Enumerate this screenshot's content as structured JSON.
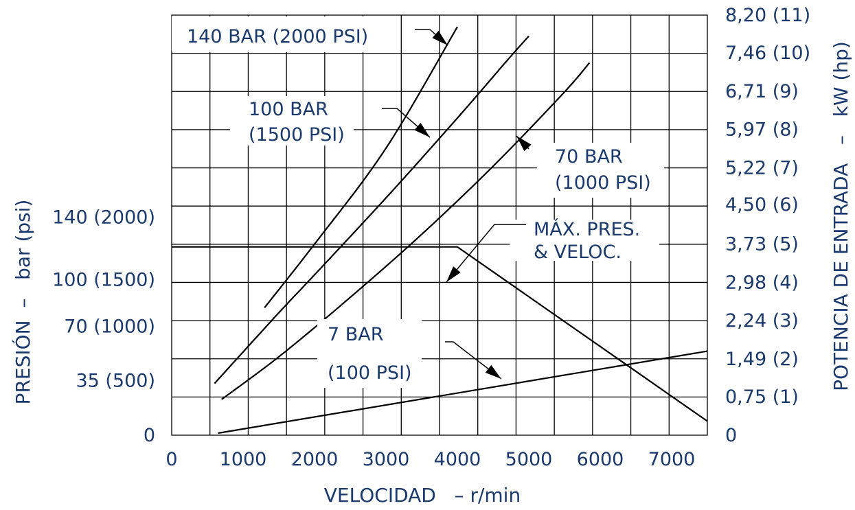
{
  "chart_data": {
    "type": "line",
    "x_label": "VELOCIDAD   – r/min",
    "y_left_label": "PRESIÓN  –   bar (psi)",
    "y_right_label": "POTENCIA DE ENTRADA   –   kW (hp)",
    "x_ticks": [
      "0",
      "1000",
      "2000",
      "3000",
      "4000",
      "5000",
      "6000",
      "7000"
    ],
    "x_tick_values": [
      0,
      1000,
      2000,
      3000,
      4000,
      5000,
      6000,
      7000
    ],
    "xlim": [
      0,
      7500
    ],
    "y_left_ticks": [
      "0",
      "35 (500)",
      "70 (1000)",
      "100 (1500)",
      "140 (2000)"
    ],
    "y_left_tick_values": [
      0,
      35,
      70,
      100,
      140
    ],
    "y_left_lim": [
      0,
      270
    ],
    "y_right_ticks": [
      "0",
      "0,75 (1)",
      "1,49 (2)",
      "2,24 (3)",
      "2,98 (4)",
      "3,73 (5)",
      "4,50 (6)",
      "5,22 (7)",
      "5,97 (8)",
      "6,71 (9)",
      "7,46 (10)",
      "8,20 (11)"
    ],
    "y_right_tick_values": [
      0,
      0.75,
      1.49,
      2.24,
      2.98,
      3.73,
      4.5,
      5.22,
      5.97,
      6.71,
      7.46,
      8.2
    ],
    "y_right_lim": [
      0,
      8.2
    ],
    "grid": true,
    "series": [
      {
        "name": "140 BAR (2000 PSI)",
        "axis": "right",
        "label_lines": [
          "140 BAR (2000 PSI)"
        ],
        "points": [
          [
            1300,
            2.49
          ],
          [
            2000,
            3.73
          ],
          [
            3000,
            5.6
          ],
          [
            4000,
            7.97
          ]
        ]
      },
      {
        "name": "100 BAR (1500 PSI)",
        "axis": "right",
        "label_lines": [
          "100 BAR",
          "(1500 PSI)"
        ],
        "points": [
          [
            600,
            1.01
          ],
          [
            1500,
            2.39
          ],
          [
            2000,
            3.13
          ],
          [
            3000,
            4.63
          ],
          [
            4000,
            6.19
          ],
          [
            4700,
            7.32
          ],
          [
            5000,
            7.79
          ]
        ]
      },
      {
        "name": "70 BAR (1000 PSI)",
        "axis": "right",
        "label_lines": [
          "70 BAR",
          "(1000 PSI)"
        ],
        "points": [
          [
            700,
            0.7
          ],
          [
            1500,
            1.53
          ],
          [
            2500,
            2.69
          ],
          [
            3500,
            3.92
          ],
          [
            4500,
            5.25
          ],
          [
            5500,
            6.7
          ],
          [
            5850,
            7.27
          ]
        ]
      },
      {
        "name": "MÁX. PRES. & VELOC.",
        "axis": "left",
        "label_lines": [
          "MÁX. PRES.",
          "& VELOC."
        ],
        "points": [
          [
            0,
            121
          ],
          [
            4000,
            121
          ],
          [
            7500,
            9
          ]
        ]
      },
      {
        "name": "7 BAR (100 PSI)",
        "axis": "right",
        "label_lines": [
          "7 BAR",
          "(100 PSI)"
        ],
        "points": [
          [
            650,
            0.04
          ],
          [
            7500,
            1.64
          ]
        ]
      }
    ]
  }
}
